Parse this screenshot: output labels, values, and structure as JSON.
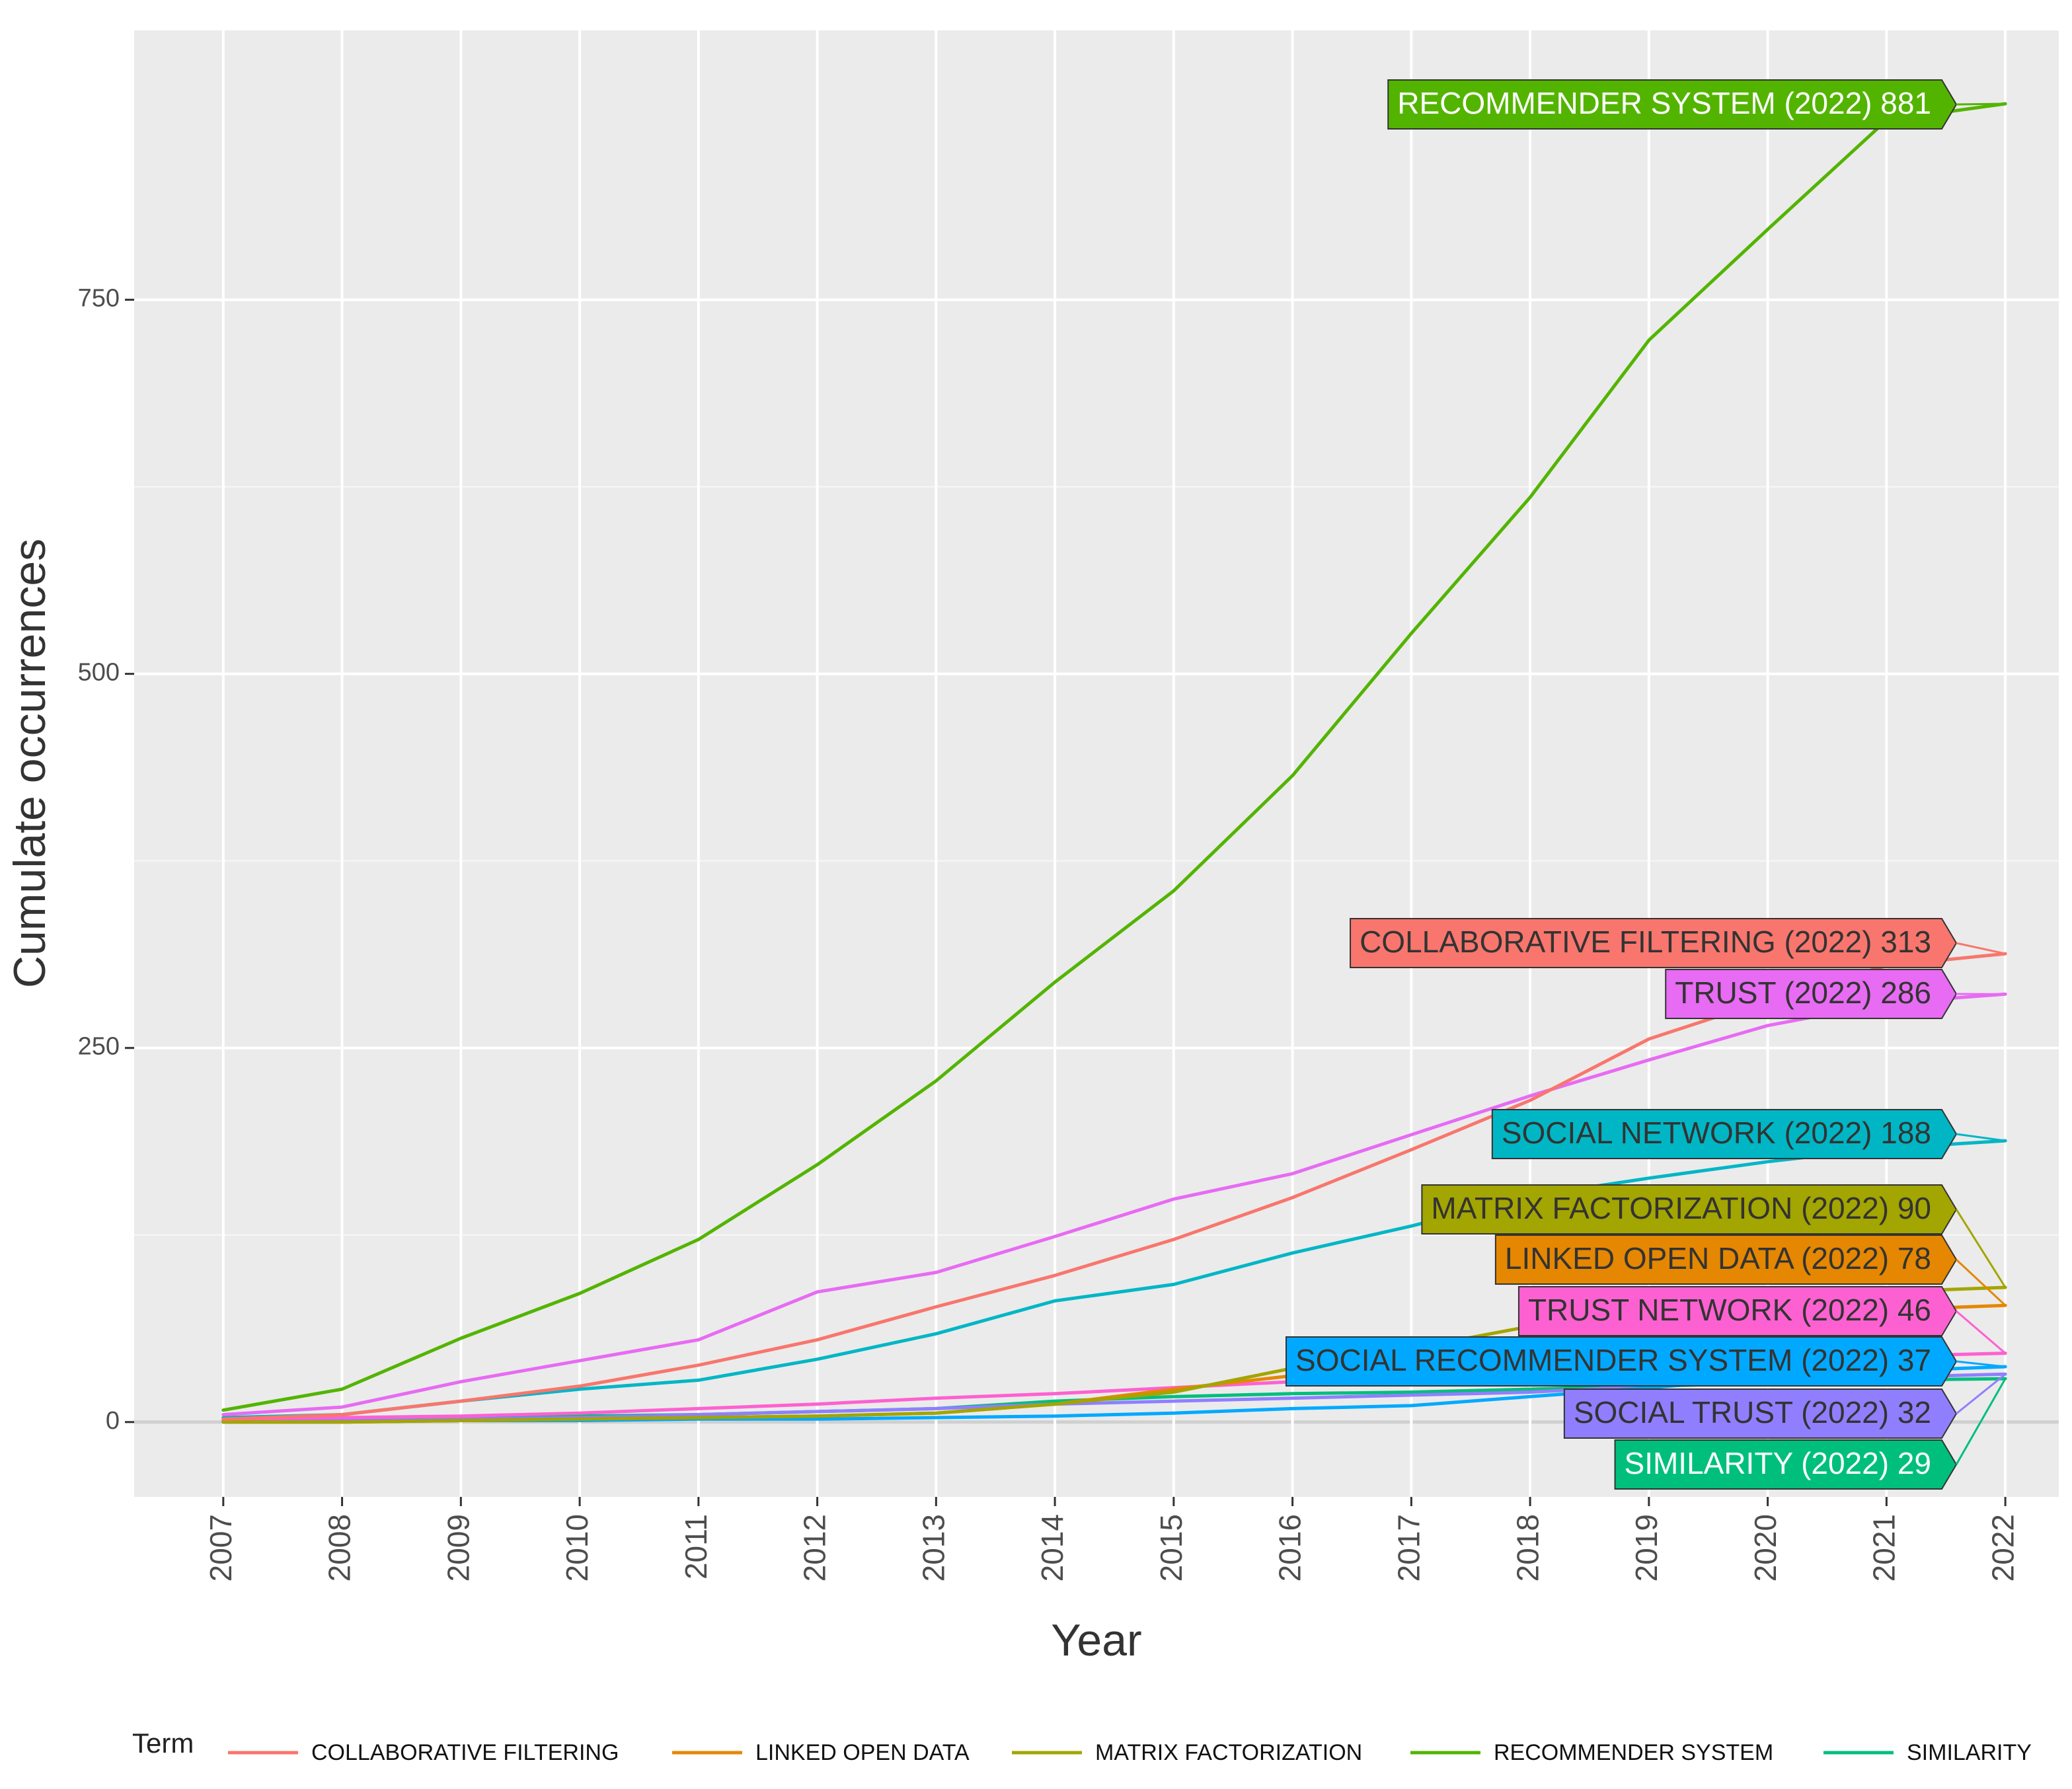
{
  "chart_data": {
    "type": "line",
    "xlabel": "Year",
    "ylabel": "Cumulate occurrences",
    "x": [
      2007,
      2008,
      2009,
      2010,
      2011,
      2012,
      2013,
      2014,
      2015,
      2016,
      2017,
      2018,
      2019,
      2020,
      2021,
      2022
    ],
    "xlim": [
      2006.25,
      2022.45
    ],
    "ylim": [
      -50,
      930
    ],
    "yticks": [
      0,
      250,
      500,
      750
    ],
    "grid": true,
    "legend": {
      "title": "Term",
      "placement": "bottom"
    },
    "series": [
      {
        "name": "RECOMMENDER SYSTEM",
        "color": "#53b400",
        "values": [
          8,
          22,
          56,
          86,
          122,
          172,
          228,
          294,
          355,
          432,
          527,
          618,
          723,
          797,
          870,
          881
        ]
      },
      {
        "name": "COLLABORATIVE FILTERING",
        "color": "#f8766d",
        "values": [
          2,
          5,
          14,
          24,
          38,
          55,
          77,
          98,
          122,
          150,
          182,
          215,
          256,
          282,
          305,
          313
        ]
      },
      {
        "name": "TRUST",
        "color": "#e76bf3",
        "values": [
          5,
          10,
          27,
          41,
          55,
          87,
          100,
          124,
          149,
          166,
          192,
          218,
          242,
          265,
          280,
          286
        ]
      },
      {
        "name": "SOCIAL NETWORK",
        "color": "#00b6c5",
        "values": [
          3,
          5,
          14,
          22,
          28,
          42,
          59,
          81,
          92,
          113,
          131,
          151,
          163,
          174,
          183,
          188
        ]
      },
      {
        "name": "MATRIX FACTORIZATION",
        "color": "#a3a500",
        "values": [
          0,
          0,
          1,
          2,
          3,
          4,
          6,
          12,
          20,
          36,
          49,
          64,
          75,
          82,
          87,
          90
        ]
      },
      {
        "name": "LINKED OPEN DATA",
        "color": "#e58700",
        "values": [
          0,
          0,
          1,
          2,
          3,
          4,
          6,
          12,
          22,
          31,
          41,
          53,
          63,
          70,
          75,
          78
        ]
      },
      {
        "name": "TRUST NETWORK",
        "color": "#fd61d1",
        "values": [
          2,
          3,
          4,
          6,
          9,
          12,
          16,
          19,
          23,
          27,
          30,
          34,
          38,
          41,
          44,
          46
        ]
      },
      {
        "name": "SOCIAL RECOMMENDER SYSTEM",
        "color": "#00a9ff",
        "values": [
          0,
          0,
          1,
          1,
          2,
          2,
          3,
          4,
          6,
          9,
          11,
          17,
          23,
          29,
          34,
          37
        ]
      },
      {
        "name": "SOCIAL TRUST",
        "color": "#8f7fff",
        "values": [
          0,
          1,
          2,
          3,
          5,
          7,
          9,
          12,
          14,
          16,
          18,
          20,
          24,
          27,
          30,
          32
        ]
      },
      {
        "name": "SIMILARITY",
        "color": "#00bf7d",
        "values": [
          1,
          2,
          3,
          4,
          5,
          7,
          9,
          14,
          17,
          19,
          20,
          22,
          24,
          26,
          28,
          29
        ]
      }
    ],
    "annotations": [
      {
        "text": "RECOMMENDER SYSTEM (2022) 881",
        "series": "RECOMMENDER SYSTEM",
        "value": 881,
        "fill": "#53b400",
        "text_color": "#ffffff"
      },
      {
        "text": "COLLABORATIVE FILTERING (2022) 313",
        "series": "COLLABORATIVE FILTERING",
        "value": 313,
        "fill": "#f8766d",
        "text_color": "#333333"
      },
      {
        "text": "TRUST (2022) 286",
        "series": "TRUST",
        "value": 286,
        "fill": "#e76bf3",
        "text_color": "#333333"
      },
      {
        "text": "SOCIAL NETWORK (2022) 188",
        "series": "SOCIAL NETWORK",
        "value": 188,
        "fill": "#00b6c5",
        "text_color": "#333333"
      },
      {
        "text": "MATRIX FACTORIZATION (2022) 90",
        "series": "MATRIX FACTORIZATION",
        "value": 90,
        "fill": "#a3a500",
        "text_color": "#333333"
      },
      {
        "text": "LINKED OPEN DATA (2022) 78",
        "series": "LINKED OPEN DATA",
        "value": 78,
        "fill": "#e58700",
        "text_color": "#333333"
      },
      {
        "text": "TRUST NETWORK (2022) 46",
        "series": "TRUST NETWORK",
        "value": 46,
        "fill": "#fd61d1",
        "text_color": "#333333"
      },
      {
        "text": "SOCIAL RECOMMENDER SYSTEM (2022) 37",
        "series": "SOCIAL RECOMMENDER SYSTEM",
        "value": 37,
        "fill": "#00a9ff",
        "text_color": "#333333"
      },
      {
        "text": "SOCIAL TRUST (2022) 32",
        "series": "SOCIAL TRUST",
        "value": 32,
        "fill": "#8f7fff",
        "text_color": "#333333"
      },
      {
        "text": "SIMILARITY (2022) 29",
        "series": "SIMILARITY",
        "value": 29,
        "fill": "#00bf7d",
        "text_color": "#ffffff"
      }
    ],
    "legend_entries": [
      {
        "name": "COLLABORATIVE FILTERING",
        "color": "#f8766d"
      },
      {
        "name": "LINKED OPEN DATA",
        "color": "#e58700"
      },
      {
        "name": "MATRIX FACTORIZATION",
        "color": "#a3a500"
      },
      {
        "name": "RECOMMENDER SYSTEM",
        "color": "#53b400"
      },
      {
        "name": "SIMILARITY",
        "color": "#00bf7d"
      }
    ]
  }
}
